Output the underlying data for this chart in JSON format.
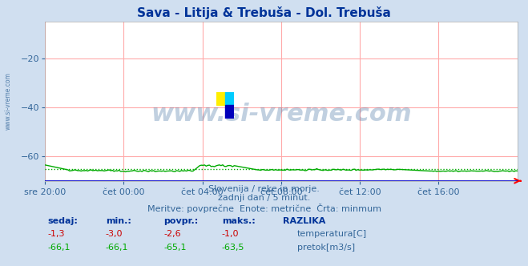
{
  "title": "Sava - Litija & Trebuša - Dol. Trebuša",
  "title_color": "#003399",
  "bg_color": "#d0dff0",
  "plot_bg_color": "#ffffff",
  "grid_color": "#ffaaaa",
  "tick_color": "#336699",
  "n_points": 288,
  "ylim": [
    -70,
    -5
  ],
  "yticks": [
    -60,
    -40,
    -20
  ],
  "x_tick_labels": [
    "sre 20:00",
    "čet 00:00",
    "čet 04:00",
    "čet 08:00",
    "čet 12:00",
    "čet 16:00"
  ],
  "x_tick_positions": [
    0.0,
    0.1667,
    0.3333,
    0.5,
    0.6667,
    0.8333
  ],
  "temp_color": "#cc0000",
  "pretok_color": "#00aa00",
  "blue_line_color": "#0000cc",
  "temp_avg": -2.6,
  "pretok_avg": -65.1,
  "watermark": "www.si-vreme.com",
  "watermark_color": "#336699",
  "watermark_alpha": 0.3,
  "footer_line1": "Slovenija / reke in morje.",
  "footer_line2": "zadnji dan / 5 minut.",
  "footer_line3": "Meritve: povprečne  Enote: metrične  Črta: minmum",
  "footer_color": "#336699",
  "label_color": "#003399",
  "sidebar_text": "www.si-vreme.com",
  "sidebar_color": "#336699"
}
